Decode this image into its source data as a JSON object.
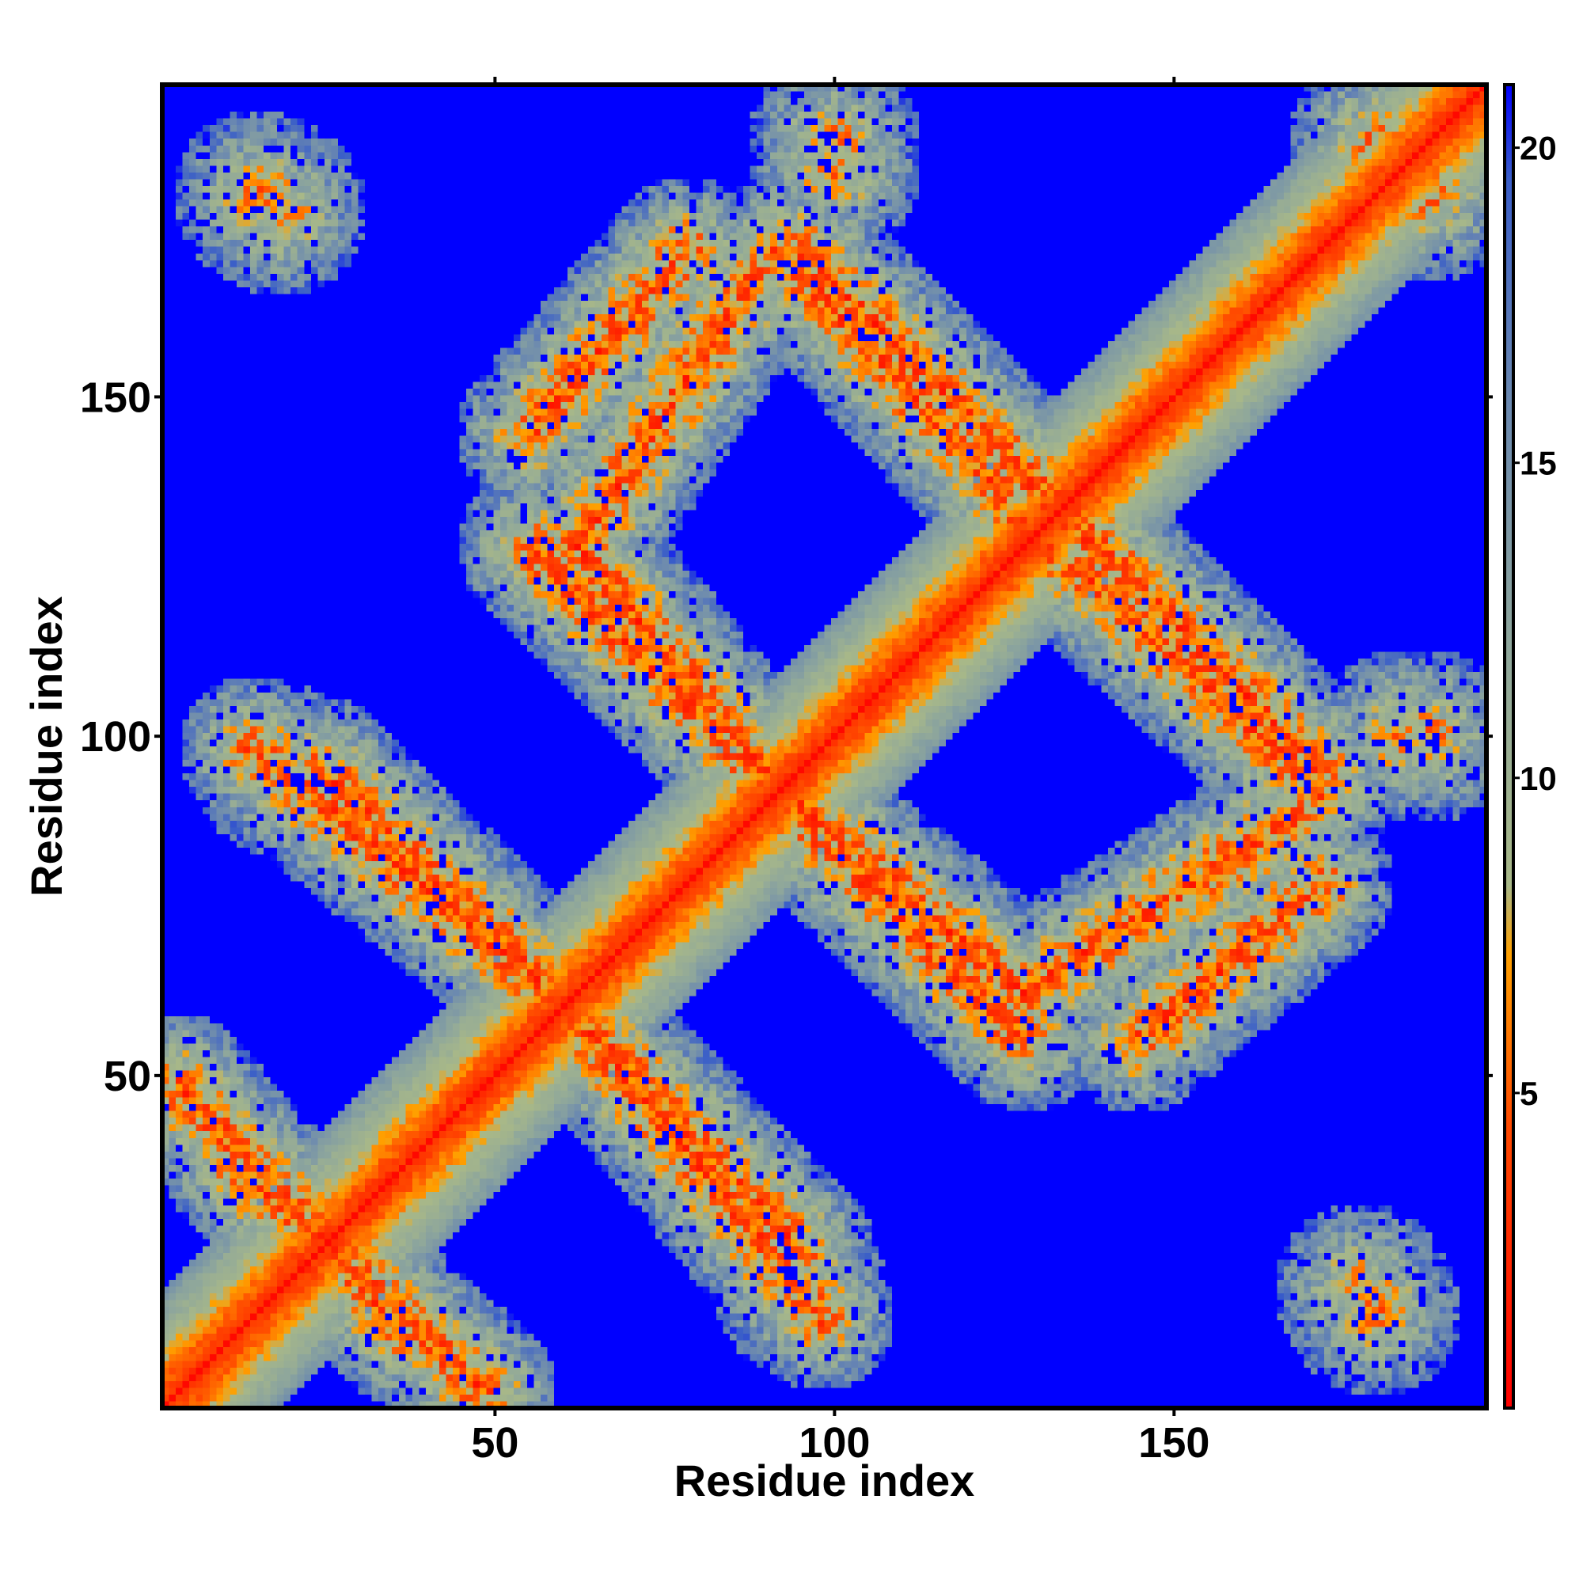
{
  "chart_data": {
    "type": "heatmap",
    "xlabel": "Residue index",
    "ylabel": "Residue index",
    "n_residues": 196,
    "xlim": [
      1,
      196
    ],
    "ylim": [
      1,
      196
    ],
    "x_ticks": [
      50,
      100,
      150
    ],
    "y_ticks": [
      50,
      100,
      150
    ],
    "colorbar": {
      "min": 0,
      "max": 21,
      "ticks": [
        5,
        10,
        15,
        20
      ],
      "stops": [
        {
          "value": 0,
          "color": "#ff0000"
        },
        {
          "value": 4.5,
          "color": "#ff4a00"
        },
        {
          "value": 7.2,
          "color": "#ffa000"
        },
        {
          "value": 8.3,
          "color": "#a8b888"
        },
        {
          "value": 12,
          "color": "#8fa79b"
        },
        {
          "value": 16,
          "color": "#6a88b0"
        },
        {
          "value": 19.5,
          "color": "#3a5ec8"
        },
        {
          "value": 21,
          "color": "#0000ff"
        }
      ]
    },
    "background_color": "#0000ff",
    "contact_bands": [
      {
        "description": "main diagonal",
        "from": [
          1,
          1
        ],
        "to": [
          196,
          196
        ]
      },
      {
        "from": [
          3,
          48
        ],
        "to": [
          36,
          12
        ]
      },
      {
        "from": [
          14,
          98
        ],
        "to": [
          58,
          62
        ]
      },
      {
        "from": [
          58,
          62
        ],
        "to": [
          95,
          24
        ]
      },
      {
        "from": [
          55,
          128
        ],
        "to": [
          95,
          88
        ]
      },
      {
        "from": [
          88,
          95
        ],
        "to": [
          128,
          62
        ]
      },
      {
        "from": [
          128,
          62
        ],
        "to": [
          168,
          88
        ]
      },
      {
        "from": [
          130,
          130
        ],
        "to": [
          172,
          92
        ]
      },
      {
        "from": [
          95,
          172
        ],
        "to": [
          135,
          132
        ]
      },
      {
        "from": [
          55,
          145
        ],
        "to": [
          78,
          172
        ]
      }
    ],
    "contact_patches": [
      {
        "center": [
          15,
          180
        ]
      },
      {
        "center": [
          95,
          18
        ]
      },
      {
        "center": [
          178,
          18
        ]
      },
      {
        "center": [
          188,
          100
        ]
      },
      {
        "center": [
          188,
          180
        ]
      },
      {
        "center": [
          100,
          184
        ]
      }
    ]
  }
}
